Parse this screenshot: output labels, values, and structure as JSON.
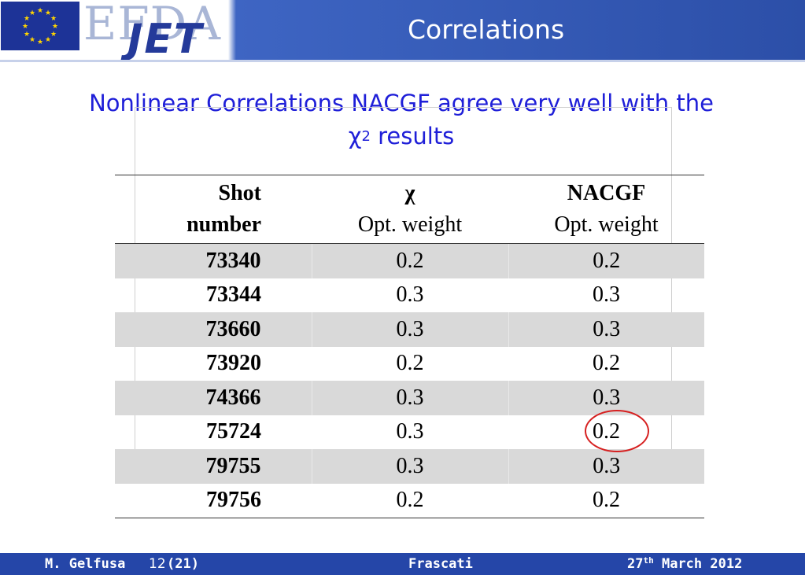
{
  "header": {
    "org_logo": "EFDA",
    "jet_logo": "JET",
    "title": "Correlations"
  },
  "subtitle": {
    "line1": "Nonlinear Correlations NACGF agree very well with the",
    "chi": "χ",
    "chi_sup": "2",
    "line2_rest": " results"
  },
  "table": {
    "headers": [
      {
        "line1": "Shot",
        "line2": "number"
      },
      {
        "line1": "χ",
        "line2": "Opt. weight"
      },
      {
        "line1": "NACGF",
        "line2": "Opt. weight"
      }
    ],
    "rows": [
      {
        "shot": "73340",
        "chi": "0.2",
        "nacgf": "0.2"
      },
      {
        "shot": "73344",
        "chi": "0.3",
        "nacgf": "0.3"
      },
      {
        "shot": "73660",
        "chi": "0.3",
        "nacgf": "0.3"
      },
      {
        "shot": "73920",
        "chi": "0.2",
        "nacgf": "0.2"
      },
      {
        "shot": "74366",
        "chi": "0.3",
        "nacgf": "0.3"
      },
      {
        "shot": "75724",
        "chi": "0.3",
        "nacgf": "0.2"
      },
      {
        "shot": "79755",
        "chi": "0.3",
        "nacgf": "0.3"
      },
      {
        "shot": "79756",
        "chi": "0.2",
        "nacgf": "0.2"
      }
    ]
  },
  "footer": {
    "author": "M. Gelfusa",
    "page": "12",
    "total": "(21)",
    "location": "Frascati",
    "date_day": "27",
    "date_sup": "th",
    "date_rest": " March 2012"
  },
  "colors": {
    "header_blue": "#2c4fa8",
    "subtitle_blue": "#1f1fd8",
    "highlight_circle": "#d62020",
    "row_shade": "#d9d9d9"
  }
}
